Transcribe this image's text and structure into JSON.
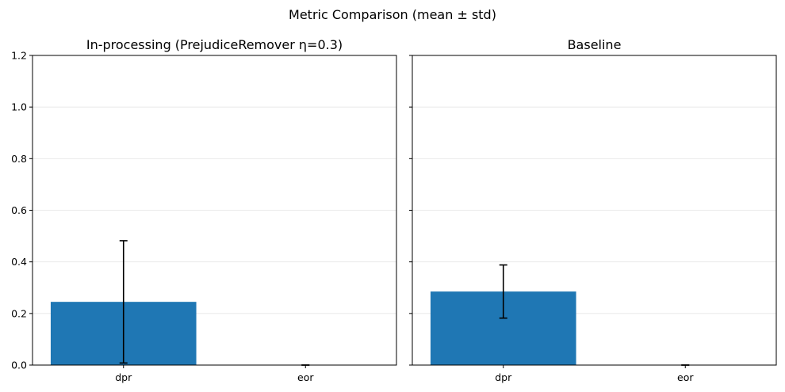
{
  "figure": {
    "suptitle": "Metric Comparison (mean ± std)"
  },
  "colors": {
    "bar": "#1f77b4",
    "error": "#000000",
    "grid": "#e5e5e5",
    "axes": "#000000"
  },
  "chart_data": [
    {
      "type": "bar",
      "title": "In-processing (PrejudiceRemover η=0.3)",
      "xlabel": "",
      "ylabel": "",
      "categories": [
        "dpr",
        "eor"
      ],
      "values": [
        0.245,
        0.0
      ],
      "errors": [
        0.237,
        0.0
      ],
      "ylim": [
        0,
        1.2
      ],
      "yticks": [
        "0.0",
        "0.2",
        "0.4",
        "0.6",
        "0.8",
        "1.0",
        "1.2"
      ],
      "grid": "y",
      "show_y_tick_labels": true
    },
    {
      "type": "bar",
      "title": "Baseline",
      "xlabel": "",
      "ylabel": "",
      "categories": [
        "dpr",
        "eor"
      ],
      "values": [
        0.285,
        0.0
      ],
      "errors": [
        0.103,
        0.0
      ],
      "ylim": [
        0,
        1.2
      ],
      "yticks": [
        "0.0",
        "0.2",
        "0.4",
        "0.6",
        "0.8",
        "1.0",
        "1.2"
      ],
      "grid": "y",
      "show_y_tick_labels": false
    }
  ]
}
